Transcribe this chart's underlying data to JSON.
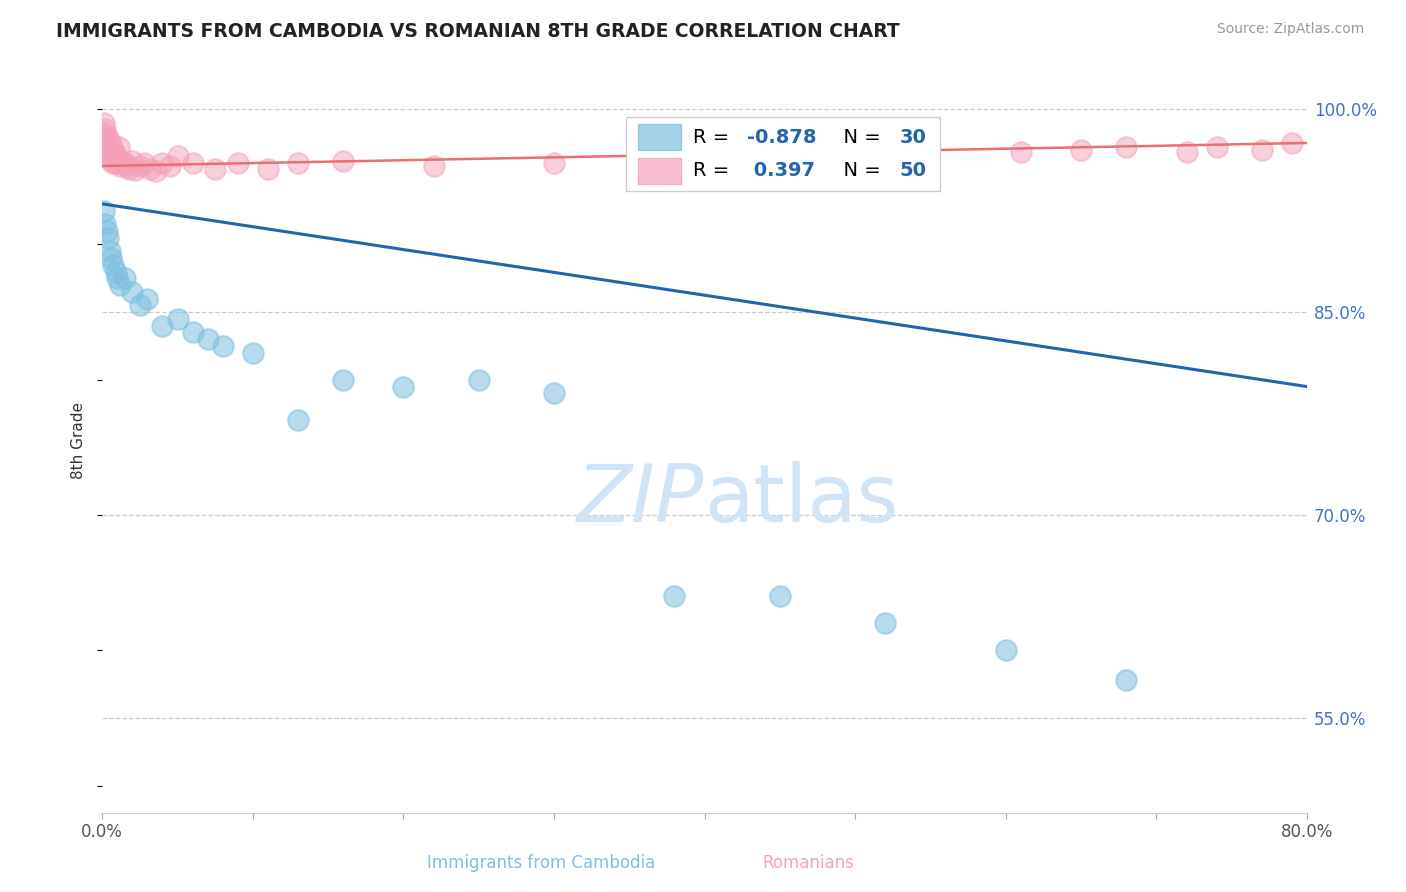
{
  "title": "IMMIGRANTS FROM CAMBODIA VS ROMANIAN 8TH GRADE CORRELATION CHART",
  "source": "Source: ZipAtlas.com",
  "xlabel_cambodia": "Immigrants from Cambodia",
  "xlabel_romanian": "Romanians",
  "ylabel": "8th Grade",
  "xlim": [
    0.0,
    0.8
  ],
  "ylim": [
    0.48,
    1.03
  ],
  "yticks": [
    0.55,
    0.7,
    0.85,
    1.0
  ],
  "yticklabels": [
    "55.0%",
    "70.0%",
    "85.0%",
    "100.0%"
  ],
  "cambodia_R": -0.878,
  "cambodia_N": 30,
  "romanian_R": 0.397,
  "romanian_N": 50,
  "cambodia_color": "#7fbfdf",
  "romanian_color": "#f5a0b8",
  "cambodia_trend_color": "#2166ac",
  "romanian_trend_color": "#e87070",
  "watermark_color": "#d0e4f5",
  "cambodia_x": [
    0.001,
    0.002,
    0.003,
    0.004,
    0.005,
    0.006,
    0.007,
    0.009,
    0.01,
    0.012,
    0.015,
    0.02,
    0.025,
    0.03,
    0.04,
    0.05,
    0.06,
    0.07,
    0.08,
    0.1,
    0.13,
    0.16,
    0.2,
    0.25,
    0.3,
    0.38,
    0.45,
    0.52,
    0.6,
    0.68
  ],
  "cambodia_y": [
    0.925,
    0.915,
    0.91,
    0.905,
    0.895,
    0.89,
    0.885,
    0.88,
    0.875,
    0.87,
    0.875,
    0.865,
    0.855,
    0.86,
    0.84,
    0.845,
    0.835,
    0.83,
    0.825,
    0.82,
    0.77,
    0.8,
    0.795,
    0.8,
    0.79,
    0.64,
    0.64,
    0.62,
    0.6,
    0.578
  ],
  "romanian_x": [
    0.0005,
    0.001,
    0.001,
    0.002,
    0.002,
    0.003,
    0.003,
    0.004,
    0.004,
    0.005,
    0.005,
    0.006,
    0.006,
    0.007,
    0.007,
    0.008,
    0.009,
    0.01,
    0.011,
    0.012,
    0.013,
    0.015,
    0.016,
    0.018,
    0.02,
    0.022,
    0.025,
    0.028,
    0.032,
    0.036,
    0.04,
    0.045,
    0.05,
    0.06,
    0.075,
    0.09,
    0.11,
    0.13,
    0.16,
    0.22,
    0.3,
    0.4,
    0.52,
    0.61,
    0.65,
    0.68,
    0.72,
    0.74,
    0.77,
    0.79
  ],
  "romanian_y": [
    0.982,
    0.99,
    0.978,
    0.985,
    0.975,
    0.98,
    0.97,
    0.978,
    0.968,
    0.972,
    0.965,
    0.975,
    0.962,
    0.97,
    0.96,
    0.968,
    0.965,
    0.96,
    0.972,
    0.958,
    0.962,
    0.96,
    0.958,
    0.956,
    0.962,
    0.955,
    0.958,
    0.96,
    0.956,
    0.954,
    0.96,
    0.958,
    0.965,
    0.96,
    0.956,
    0.96,
    0.956,
    0.96,
    0.962,
    0.958,
    0.96,
    0.965,
    0.962,
    0.968,
    0.97,
    0.972,
    0.968,
    0.972,
    0.97,
    0.975
  ],
  "cam_trend_x0": 0.0,
  "cam_trend_y0": 0.93,
  "cam_trend_x1": 0.8,
  "cam_trend_y1": 0.795,
  "rom_trend_x0": 0.0,
  "rom_trend_y0": 0.958,
  "rom_trend_x1": 0.8,
  "rom_trend_y1": 0.975
}
